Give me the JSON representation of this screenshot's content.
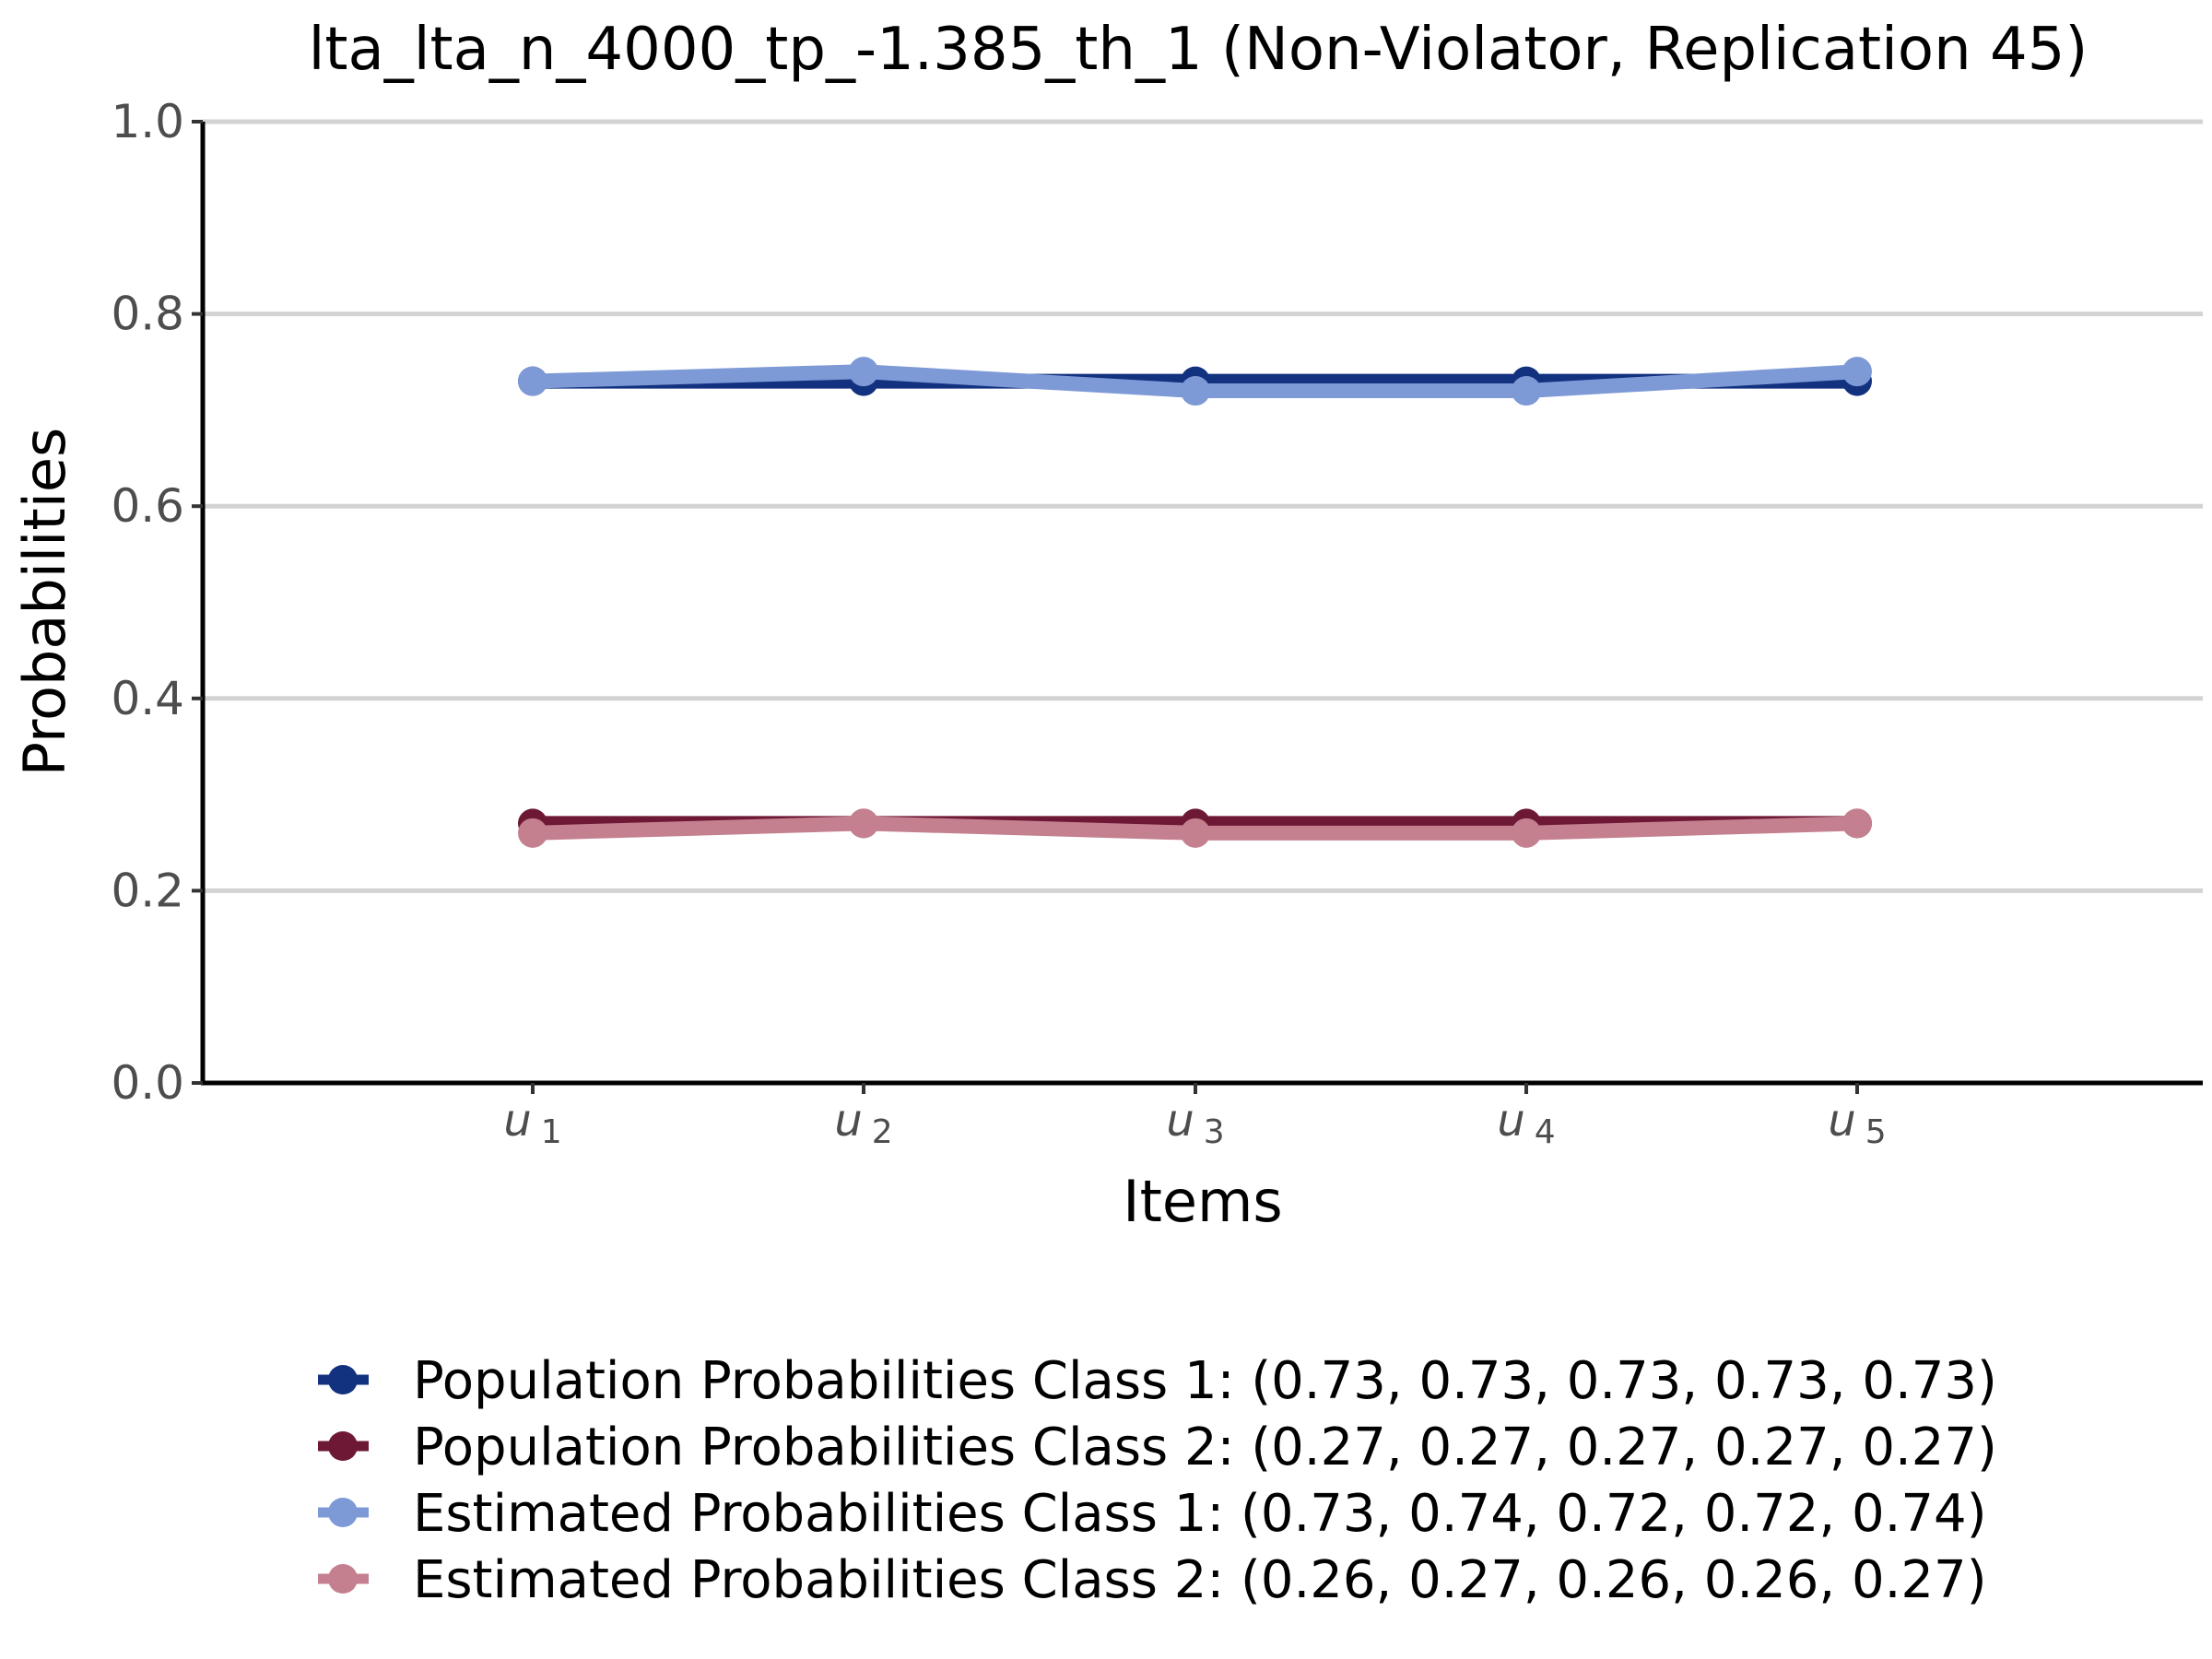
{
  "chart_data": {
    "type": "line",
    "title": "lta_lta_n_4000_tp_-1.385_th_1 (Non-Violator, Replication 45)",
    "xlabel": "Items",
    "ylabel": "Probabilities",
    "ylim": [
      0,
      1
    ],
    "yticks": [
      "0.0",
      "0.2",
      "0.4",
      "0.6",
      "0.8",
      "1.0"
    ],
    "ytick_values": [
      0,
      0.2,
      0.4,
      0.6,
      0.8,
      1.0
    ],
    "categories": [
      {
        "base": "u",
        "sub": "1"
      },
      {
        "base": "u",
        "sub": "2"
      },
      {
        "base": "u",
        "sub": "3"
      },
      {
        "base": "u",
        "sub": "4"
      },
      {
        "base": "u",
        "sub": "5"
      }
    ],
    "grid": "horizontal",
    "legend_position": "bottom",
    "series": [
      {
        "name": "Population Probabilities Class 1: (0.73, 0.73, 0.73, 0.73, 0.73)",
        "values": [
          0.73,
          0.73,
          0.73,
          0.73,
          0.73
        ],
        "color": "#12317f"
      },
      {
        "name": "Population Probabilities Class 2: (0.27, 0.27, 0.27, 0.27, 0.27)",
        "values": [
          0.27,
          0.27,
          0.27,
          0.27,
          0.27
        ],
        "color": "#6d1835"
      },
      {
        "name": "Estimated Probabilities Class 1: (0.73, 0.74, 0.72, 0.72, 0.74)",
        "values": [
          0.73,
          0.74,
          0.72,
          0.72,
          0.74
        ],
        "color": "#7d99d6"
      },
      {
        "name": "Estimated Probabilities Class 2: (0.26, 0.27, 0.26, 0.26, 0.27)",
        "values": [
          0.26,
          0.27,
          0.26,
          0.26,
          0.27
        ],
        "color": "#c4808f"
      }
    ]
  }
}
